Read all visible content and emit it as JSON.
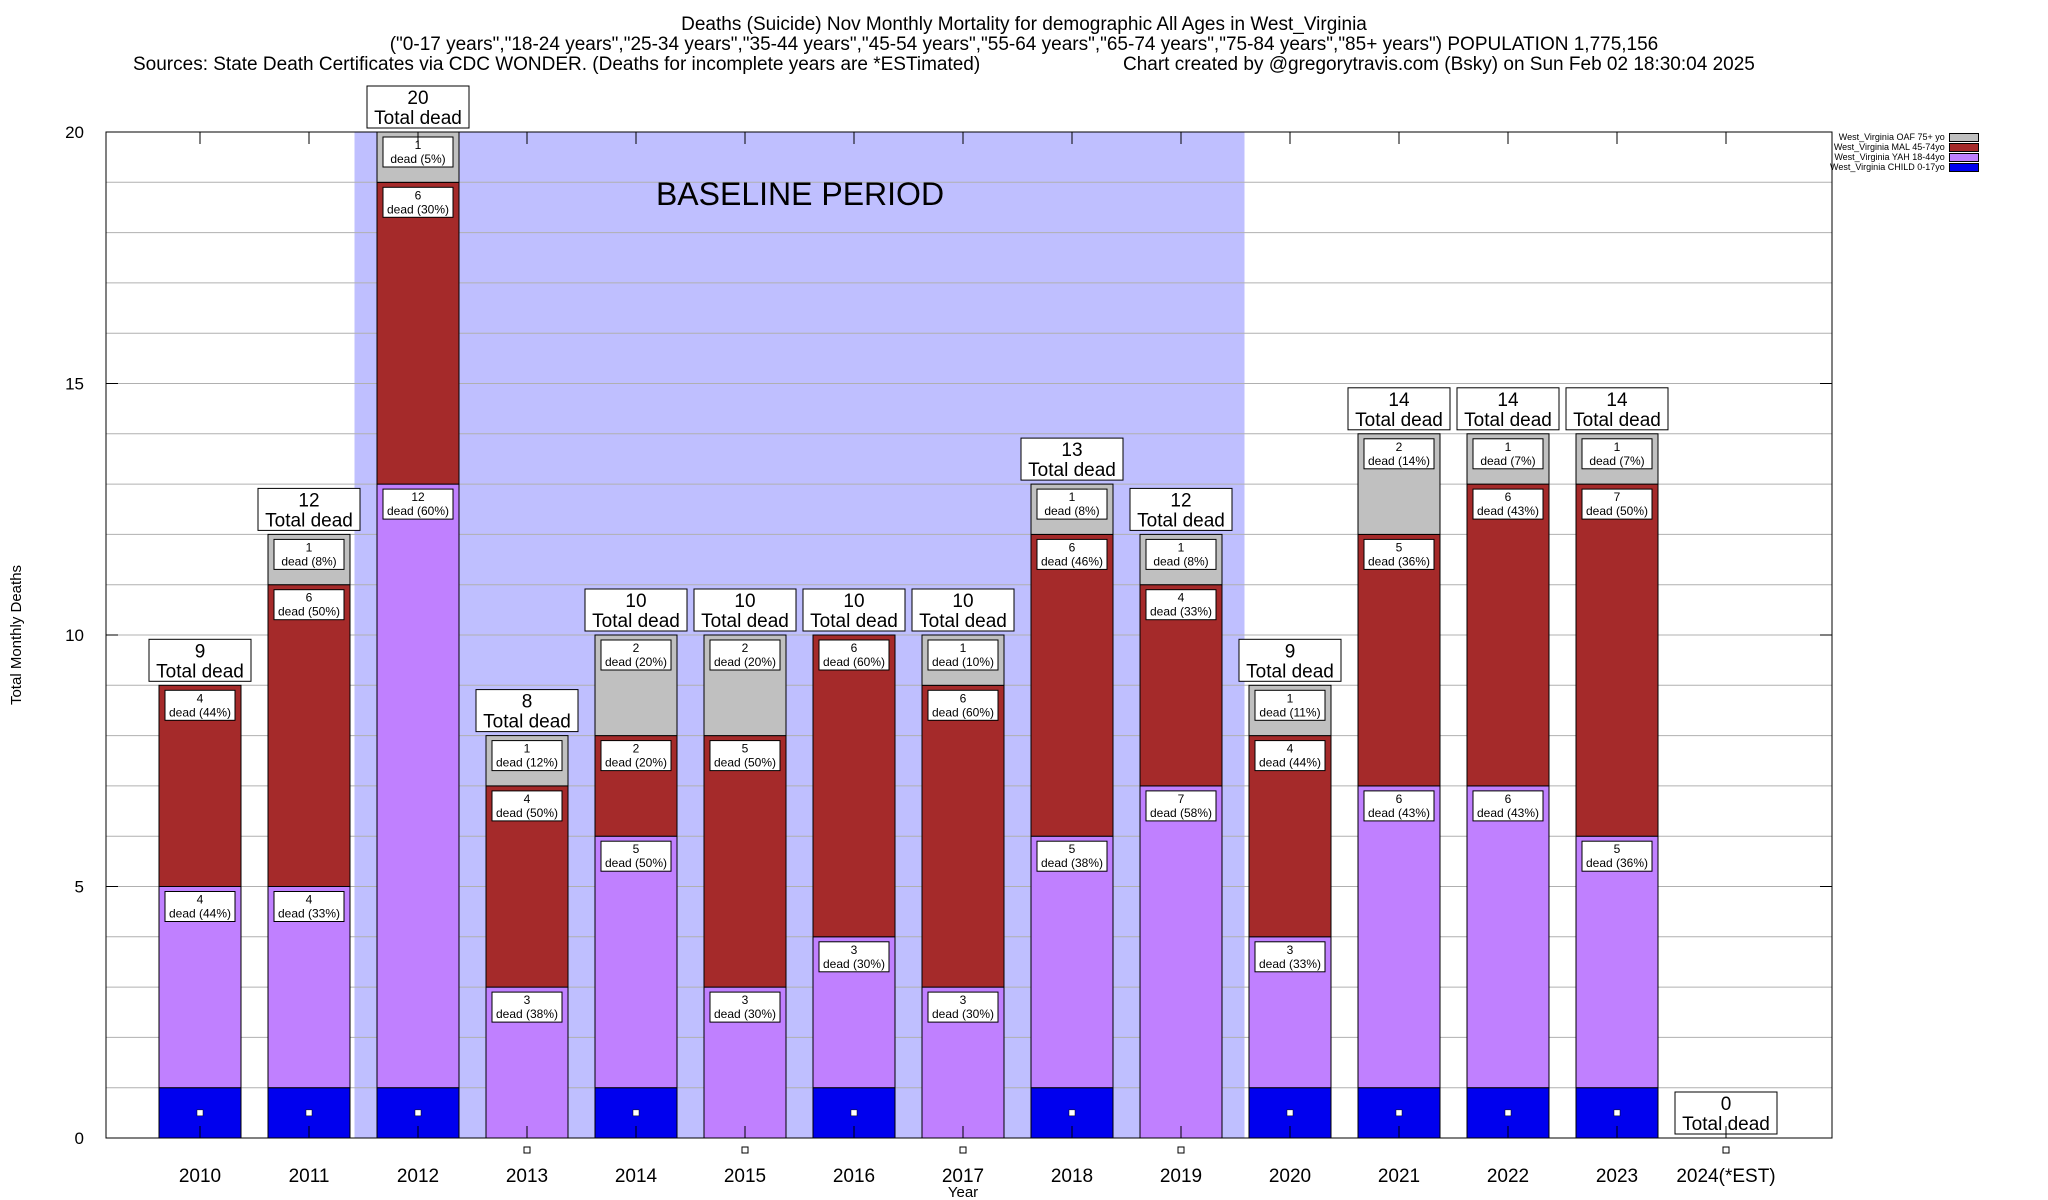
{
  "header": {
    "title": "Deaths (Suicide) Nov Monthly Mortality for demographic All Ages in West_Virginia",
    "subtitle": "(\"0-17 years\",\"18-24 years\",\"25-34 years\",\"35-44 years\",\"45-54 years\",\"55-64 years\",\"65-74 years\",\"75-84 years\",\"85+ years\") POPULATION 1,775,156",
    "sources": "Sources: State Death Certificates via CDC WONDER. (Deaths for incomplete years are *ESTimated)",
    "credit": "Chart created by @gregorytravis.com (Bsky) on Sun Feb 02 18:30:04 2025"
  },
  "colors": {
    "child": "#0000ee",
    "yah": "#c080ff",
    "mal": "#a52a2a",
    "oaf": "#c0c0c0",
    "baseline": "#bfbfff"
  },
  "chart_data": {
    "type": "bar",
    "stacked": true,
    "xlabel": "Year",
    "ylabel": "Total Monthly Deaths",
    "ylim": [
      0,
      20
    ],
    "yticks": [
      0,
      5,
      10,
      15,
      20
    ],
    "grid": true,
    "legend_position": "top-right",
    "annotation": "BASELINE PERIOD",
    "baseline_period": [
      "2012",
      "2019"
    ],
    "categories": [
      "2010",
      "2011",
      "2012",
      "2013",
      "2014",
      "2015",
      "2016",
      "2017",
      "2018",
      "2019",
      "2020",
      "2021",
      "2022",
      "2023",
      "2024(*EST)"
    ],
    "series": [
      {
        "name": "West_Virginia CHILD 0-17yo",
        "key": "child",
        "values": [
          1,
          1,
          1,
          0,
          1,
          0,
          1,
          0,
          1,
          0,
          1,
          1,
          1,
          1,
          0
        ]
      },
      {
        "name": "West_Virginia YAH 18-44yo",
        "key": "yah",
        "values": [
          4,
          4,
          12,
          3,
          5,
          3,
          3,
          3,
          5,
          7,
          3,
          6,
          6,
          5,
          0
        ]
      },
      {
        "name": "West_Virginia MAL 45-74yo",
        "key": "mal",
        "values": [
          4,
          6,
          6,
          4,
          2,
          5,
          6,
          6,
          6,
          4,
          4,
          5,
          6,
          7,
          0
        ]
      },
      {
        "name": "West_Virginia OAF 75+ yo",
        "key": "oaf",
        "values": [
          0,
          1,
          1,
          1,
          2,
          2,
          0,
          1,
          1,
          1,
          1,
          2,
          1,
          1,
          0
        ]
      }
    ],
    "segment_labels": {
      "yah": [
        "4\ndead (44%)",
        "4\ndead (33%)",
        "12\ndead (60%)",
        "3\ndead (38%)",
        "5\ndead (50%)",
        "3\ndead (30%)",
        "3\ndead (30%)",
        "3\ndead (30%)",
        "5\ndead (38%)",
        "7\ndead (58%)",
        "3\ndead (33%)",
        "6\ndead (43%)",
        "6\ndead (43%)",
        "5\ndead (36%)",
        ""
      ],
      "mal": [
        "4\ndead (44%)",
        "6\ndead (50%)",
        "6\ndead (30%)",
        "4\ndead (50%)",
        "2\ndead (20%)",
        "5\ndead (50%)",
        "6\ndead (60%)",
        "6\ndead (60%)",
        "6\ndead (46%)",
        "4\ndead (33%)",
        "4\ndead (44%)",
        "5\ndead (36%)",
        "6\ndead (43%)",
        "7\ndead (50%)",
        ""
      ],
      "oaf": [
        "",
        "1\ndead (8%)",
        "1\ndead (5%)",
        "1\ndead (12%)",
        "2\ndead (20%)",
        "2\ndead (20%)",
        "",
        "1\ndead (10%)",
        "1\ndead (8%)",
        "1\ndead (8%)",
        "1\ndead (11%)",
        "2\ndead (14%)",
        "1\ndead (7%)",
        "1\ndead (7%)",
        ""
      ]
    },
    "totals": [
      9,
      12,
      20,
      8,
      10,
      10,
      10,
      10,
      13,
      12,
      9,
      14,
      14,
      14,
      0
    ],
    "total_label": "Total dead"
  }
}
